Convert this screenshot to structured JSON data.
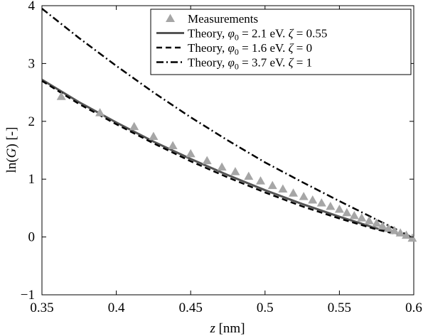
{
  "chart_data": {
    "type": "line",
    "title": "",
    "xlabel_var": "z",
    "xlabel_unit": "[nm]",
    "ylabel_func": "ln(",
    "ylabel_var": "G",
    "ylabel_rest": ") [-]",
    "xlim": [
      0.35,
      0.6
    ],
    "ylim": [
      -1,
      4
    ],
    "xticks": [
      0.35,
      0.4,
      0.45,
      0.5,
      0.55,
      0.6
    ],
    "xtick_labels": [
      "0.35",
      "0.4",
      "0.45",
      "0.5",
      "0.55",
      "0.6"
    ],
    "yticks": [
      -1,
      0,
      1,
      2,
      3,
      4
    ],
    "ytick_labels": [
      "−1",
      "0",
      "1",
      "2",
      "3",
      "4"
    ],
    "grid": false,
    "legend_position": "top-right",
    "legend": [
      {
        "kind": "marker",
        "label": "Measurements"
      },
      {
        "kind": "solid",
        "prefix": "Theory, ",
        "phi": "φ",
        "sub": "0",
        "mid": " = 2.1 eV. ",
        "zeta": "ζ",
        "suffix": " = 0.55"
      },
      {
        "kind": "dashed",
        "prefix": "Theory, ",
        "phi": "φ",
        "sub": "0",
        "mid": " = 1.6 eV. ",
        "zeta": "ζ",
        "suffix": " = 0"
      },
      {
        "kind": "dashdot",
        "prefix": "Theory, ",
        "phi": "φ",
        "sub": "0",
        "mid": " = 3.7 eV. ",
        "zeta": "ζ",
        "suffix": " = 1"
      }
    ],
    "series": [
      {
        "name": "Measurements",
        "style": "marker",
        "color": "#a6a6a6",
        "x": [
          0.363,
          0.389,
          0.412,
          0.425,
          0.438,
          0.45,
          0.461,
          0.471,
          0.48,
          0.489,
          0.497,
          0.505,
          0.512,
          0.519,
          0.526,
          0.532,
          0.538,
          0.544,
          0.55,
          0.555,
          0.56,
          0.565,
          0.57,
          0.575,
          0.579,
          0.583,
          0.587,
          0.591,
          0.595,
          0.599
        ],
        "y": [
          2.43,
          2.15,
          1.91,
          1.74,
          1.58,
          1.44,
          1.32,
          1.21,
          1.13,
          1.05,
          0.97,
          0.89,
          0.83,
          0.76,
          0.7,
          0.64,
          0.59,
          0.53,
          0.48,
          0.42,
          0.37,
          0.33,
          0.28,
          0.24,
          0.19,
          0.15,
          0.11,
          0.07,
          0.03,
          -0.02
        ]
      },
      {
        "name": "Theory, phi0 = 2.1 eV. zeta = 0.55",
        "style": "solid",
        "color": "#555555",
        "x": [
          0.35,
          0.375,
          0.4,
          0.425,
          0.45,
          0.475,
          0.5,
          0.525,
          0.55,
          0.575,
          0.6
        ],
        "y": [
          2.72,
          2.33,
          1.98,
          1.65,
          1.35,
          1.07,
          0.81,
          0.57,
          0.35,
          0.15,
          -0.01
        ]
      },
      {
        "name": "Theory, phi0 = 1.6 eV. zeta = 0",
        "style": "dashed",
        "color": "#000000",
        "x": [
          0.35,
          0.375,
          0.4,
          0.425,
          0.45,
          0.475,
          0.5,
          0.525,
          0.55,
          0.575,
          0.6
        ],
        "y": [
          2.7,
          2.3,
          1.95,
          1.62,
          1.31,
          1.03,
          0.77,
          0.53,
          0.32,
          0.13,
          -0.02
        ]
      },
      {
        "name": "Theory, phi0 = 3.7 eV. zeta = 1",
        "style": "dashdot",
        "color": "#000000",
        "x": [
          0.35,
          0.375,
          0.4,
          0.425,
          0.45,
          0.475,
          0.5,
          0.525,
          0.55,
          0.575,
          0.6
        ],
        "y": [
          3.95,
          3.44,
          2.96,
          2.5,
          2.07,
          1.67,
          1.29,
          0.95,
          0.62,
          0.3,
          -0.02
        ]
      }
    ]
  }
}
